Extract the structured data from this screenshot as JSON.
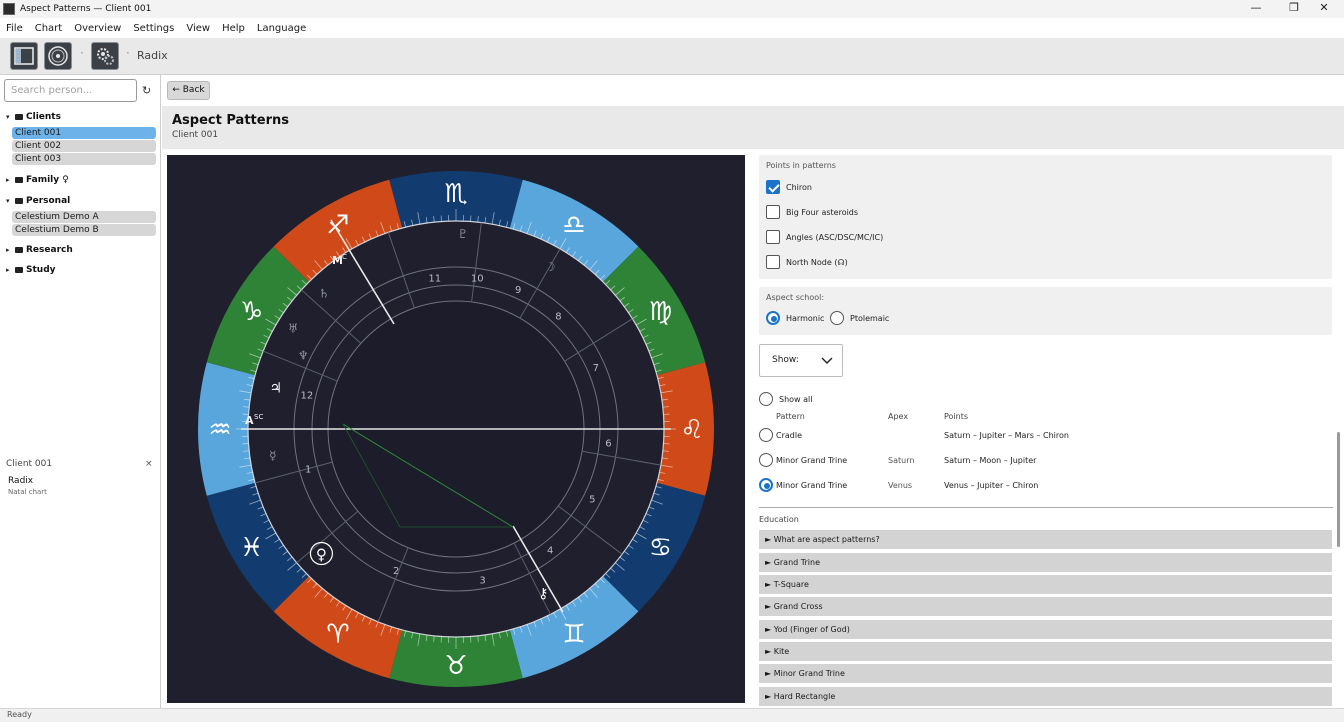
{
  "window": {
    "title": "Aspect Patterns — Client 001",
    "minimize": "—",
    "maximize": "❐",
    "close": "✕"
  },
  "menu": [
    "File",
    "Chart",
    "Overview",
    "Settings",
    "View",
    "Help",
    "Language"
  ],
  "toolbar": {
    "separator": "·",
    "current_view": "Radix"
  },
  "sidebar": {
    "search_placeholder": "Search person...",
    "refresh_icon": "↻",
    "groups": [
      {
        "name": "Clients",
        "expanded": true,
        "items": [
          "Client 001",
          "Client 002",
          "Client 003"
        ],
        "selected": "Client 001"
      },
      {
        "name": "Family ♀",
        "expanded": false
      },
      {
        "name": "Personal",
        "expanded": true,
        "items": [
          "Celestium Demo A",
          "Celestium Demo B"
        ]
      },
      {
        "name": "Research",
        "expanded": false
      },
      {
        "name": "Study",
        "expanded": false
      }
    ],
    "expanded_arrow": "▾",
    "collapsed_arrow": "▸",
    "subpanel": {
      "client": "Client 001",
      "close": "×",
      "chart_name": "Radix",
      "chart_type": "Natal chart"
    }
  },
  "header": {
    "back": "← Back",
    "title": "Aspect Patterns",
    "subtitle": "Client 001"
  },
  "chart": {
    "angle_labels": {
      "mc": "M",
      "mc_sup": "C",
      "asc": "A",
      "asc_sup": "SC"
    },
    "house_numbers": [
      "1",
      "2",
      "3",
      "4",
      "5",
      "6",
      "7",
      "8",
      "9",
      "10",
      "11",
      "12"
    ],
    "big_glyphs": [
      "♏",
      "♎",
      "♍",
      "♌",
      "♋",
      "♊",
      "♉",
      "♈",
      "♓",
      "♒",
      "♑",
      "♐"
    ],
    "planet_glyphs": [
      "♃",
      "♀",
      "⚷",
      "♄",
      "☽",
      "♅",
      "♆",
      "♇",
      "☿"
    ],
    "retro": "R"
  },
  "right": {
    "points_in_patterns": {
      "label": "Points in patterns",
      "options": [
        {
          "label": "Chiron",
          "checked": true
        },
        {
          "label": "Big Four asteroids",
          "checked": false
        },
        {
          "label": "Angles (ASC/DSC/MC/IC)",
          "checked": false
        },
        {
          "label": "North Node (☊)",
          "checked": false
        }
      ]
    },
    "aspect_school": {
      "label": "Aspect school:",
      "options": [
        "Harmonic",
        "Ptolemaic"
      ],
      "selected": "Harmonic"
    },
    "show": {
      "label": "Show:"
    },
    "show_all": "Show all",
    "columns": [
      "Pattern",
      "Apex",
      "Points"
    ],
    "patterns": [
      {
        "pattern": "Cradle",
        "apex": "",
        "points": "Saturn – Jupiter – Mars – Chiron",
        "selected": false
      },
      {
        "pattern": "Minor Grand Trine",
        "apex": "Saturn",
        "points": "Saturn – Moon – Jupiter",
        "selected": false
      },
      {
        "pattern": "Minor Grand Trine",
        "apex": "Venus",
        "points": "Venus – Jupiter – Chiron",
        "selected": true
      }
    ],
    "education_label": "Education",
    "education_items": [
      "► What are aspect patterns?",
      "► Grand Trine",
      "► T-Square",
      "► Grand Cross",
      "► Yod (Finger of God)",
      "► Kite",
      "► Minor Grand Trine",
      "► Hard Rectangle"
    ]
  },
  "status": "Ready"
}
